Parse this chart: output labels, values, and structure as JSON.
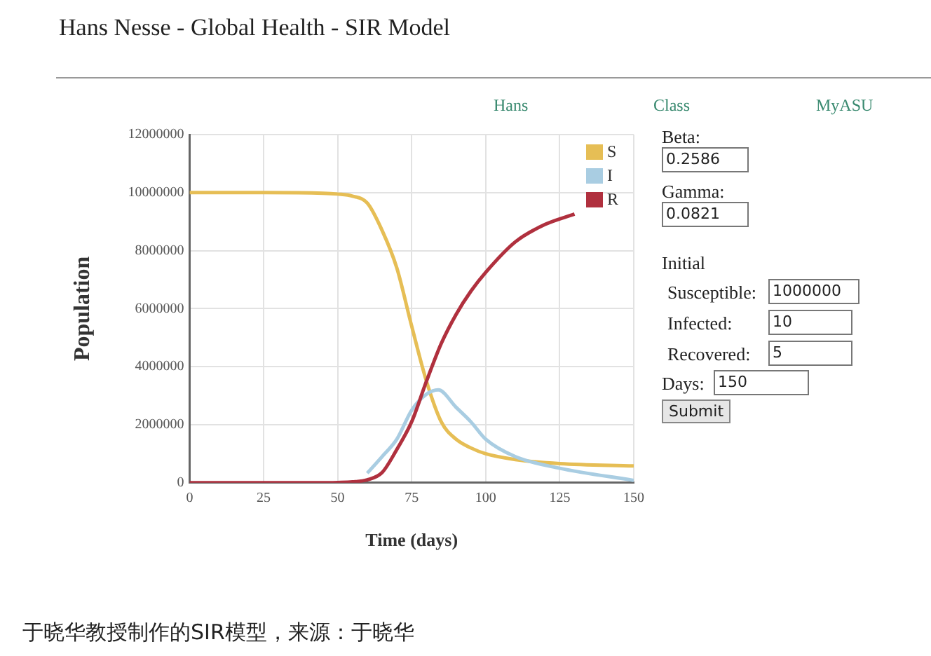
{
  "chart_data": {
    "type": "line",
    "title": "Hans Nesse - Global Health - SIR Model",
    "xlabel": "Time (days)",
    "ylabel": "Population",
    "series": [
      {
        "name": "S",
        "color": "#e6be55",
        "x": [
          0,
          25,
          45,
          50,
          55,
          60,
          65,
          70,
          75,
          80,
          85,
          90,
          95,
          100,
          110,
          125,
          150
        ],
        "values": [
          10000000,
          10000000,
          9980000,
          9950000,
          9880000,
          9640000,
          8700000,
          7400000,
          5400000,
          3500000,
          2100000,
          1500000,
          1200000,
          1000000,
          800000,
          660000,
          580000
        ]
      },
      {
        "name": "I",
        "color": "#a9cde2",
        "x": [
          60,
          65,
          70,
          75,
          80,
          84,
          90,
          95,
          100,
          110,
          125,
          150
        ],
        "values": [
          330000,
          900000,
          1500000,
          2500000,
          3050000,
          3200000,
          2600000,
          2100000,
          1500000,
          900000,
          500000,
          80000
        ]
      },
      {
        "name": "R",
        "color": "#b0303e",
        "x": [
          0,
          25,
          45,
          50,
          55,
          60,
          65,
          70,
          75,
          80,
          85,
          90,
          95,
          100,
          110,
          120,
          130
        ],
        "values": [
          0,
          0,
          0,
          10000,
          30000,
          100000,
          350000,
          1150000,
          2100000,
          3500000,
          4800000,
          5800000,
          6600000,
          7250000,
          8300000,
          8900000,
          9260000
        ]
      }
    ],
    "xlim": [
      0,
      150
    ],
    "xticks": [
      0,
      25,
      50,
      75,
      100,
      125,
      150
    ],
    "ylim": [
      0,
      12000000
    ],
    "yticks": [
      0,
      2000000,
      4000000,
      6000000,
      8000000,
      10000000,
      12000000
    ],
    "grid": true,
    "legend": "top right",
    "marker": "none",
    "line_style": "solid",
    "annotations": [
      "Hans",
      "Class",
      "MyASU",
      "Beta:",
      "0.2586",
      "Gamma:",
      "0.0821",
      "Initial",
      "Susceptible:",
      "1000000",
      "Infected:",
      "10",
      "Recovered:",
      "5",
      "Days:",
      "150",
      "Submit",
      "于晓华教授制作的SIR模型，来源：于晓华"
    ]
  }
}
